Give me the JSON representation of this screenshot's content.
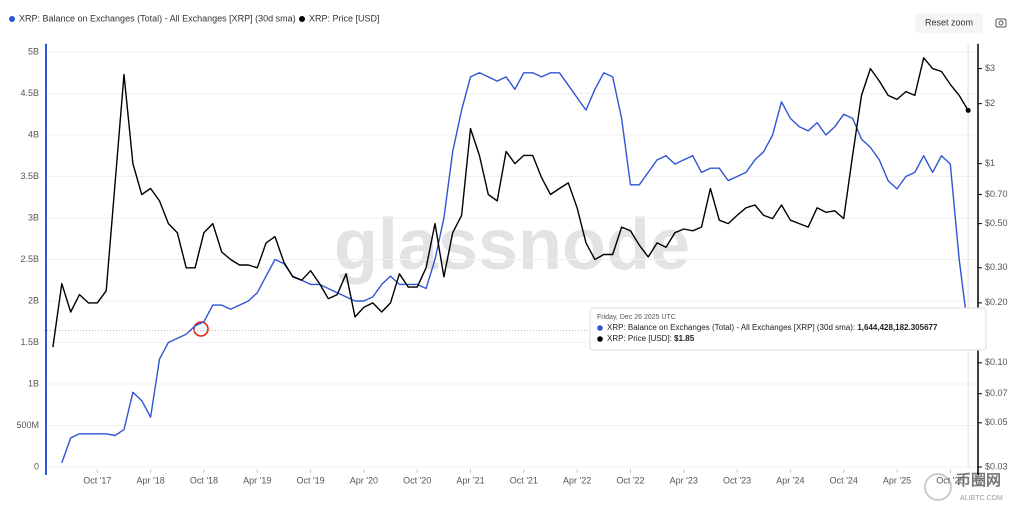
{
  "chart_data": {
    "type": "line",
    "legend": [
      "XRP: Balance on Exchanges (Total) - All Exchanges [XRP] (30d sma)",
      "XRP: Price [USD]"
    ],
    "reset_button": "Reset zoom",
    "watermark": "glassnode",
    "x": [
      "2017-05",
      "2017-06",
      "2017-07",
      "2017-08",
      "2017-09",
      "2017-10",
      "2017-11",
      "2017-12",
      "2018-01",
      "2018-02",
      "2018-03",
      "2018-04",
      "2018-05",
      "2018-06",
      "2018-07",
      "2018-08",
      "2018-09",
      "2018-10",
      "2018-11",
      "2018-12",
      "2019-01",
      "2019-02",
      "2019-03",
      "2019-04",
      "2019-05",
      "2019-06",
      "2019-07",
      "2019-08",
      "2019-09",
      "2019-10",
      "2019-11",
      "2019-12",
      "2020-01",
      "2020-02",
      "2020-03",
      "2020-04",
      "2020-05",
      "2020-06",
      "2020-07",
      "2020-08",
      "2020-09",
      "2020-10",
      "2020-11",
      "2020-12",
      "2021-01",
      "2021-02",
      "2021-03",
      "2021-04",
      "2021-05",
      "2021-06",
      "2021-07",
      "2021-08",
      "2021-09",
      "2021-10",
      "2021-11",
      "2021-12",
      "2022-01",
      "2022-02",
      "2022-03",
      "2022-04",
      "2022-05",
      "2022-06",
      "2022-07",
      "2022-08",
      "2022-09",
      "2022-10",
      "2022-11",
      "2022-12",
      "2023-01",
      "2023-02",
      "2023-03",
      "2023-04",
      "2023-05",
      "2023-06",
      "2023-07",
      "2023-08",
      "2023-09",
      "2023-10",
      "2023-11",
      "2023-12",
      "2024-01",
      "2024-02",
      "2024-03",
      "2024-04",
      "2024-05",
      "2024-06",
      "2024-07",
      "2024-08",
      "2024-09",
      "2024-10",
      "2024-11",
      "2024-12",
      "2025-01",
      "2025-02",
      "2025-03",
      "2025-04",
      "2025-05",
      "2025-06",
      "2025-07",
      "2025-08",
      "2025-09",
      "2025-10",
      "2025-11",
      "2025-12"
    ],
    "series": [
      {
        "name": "XRP: Balance on Exchanges (Total) - All Exchanges [XRP] (30d sma)",
        "color": "#2f55d4",
        "axis": "y",
        "values": [
          null,
          50000000,
          350000000,
          400000000,
          400000000,
          400000000,
          400000000,
          380000000,
          450000000,
          900000000,
          800000000,
          600000000,
          1300000000,
          1500000000,
          1550000000,
          1600000000,
          1700000000,
          1750000000,
          1950000000,
          1950000000,
          1900000000,
          1950000000,
          2000000000,
          2100000000,
          2300000000,
          2500000000,
          2450000000,
          2300000000,
          2250000000,
          2200000000,
          2200000000,
          2150000000,
          2100000000,
          2050000000,
          2000000000,
          2000000000,
          2050000000,
          2200000000,
          2300000000,
          2200000000,
          2200000000,
          2200000000,
          2150000000,
          2500000000,
          3000000000,
          3800000000,
          4300000000,
          4700000000,
          4750000000,
          4700000000,
          4650000000,
          4700000000,
          4550000000,
          4750000000,
          4750000000,
          4700000000,
          4750000000,
          4750000000,
          4600000000,
          4450000000,
          4300000000,
          4550000000,
          4750000000,
          4700000000,
          4200000000,
          3400000000,
          3400000000,
          3550000000,
          3700000000,
          3750000000,
          3650000000,
          3700000000,
          3750000000,
          3550000000,
          3600000000,
          3600000000,
          3450000000,
          3500000000,
          3550000000,
          3700000000,
          3800000000,
          4000000000,
          4400000000,
          4200000000,
          4100000000,
          4050000000,
          4150000000,
          4000000000,
          4100000000,
          4250000000,
          4200000000,
          3950000000,
          3850000000,
          3700000000,
          3450000000,
          3350000000,
          3500000000,
          3550000000,
          3750000000,
          3550000000,
          3750000000,
          3650000000,
          2500000000,
          1644428182.305677
        ]
      },
      {
        "name": "XRP: Price [USD]",
        "color": "#000000",
        "axis": "y2",
        "values": [
          0.12,
          0.25,
          0.18,
          0.22,
          0.2,
          0.2,
          0.23,
          0.8,
          2.8,
          1.0,
          0.7,
          0.75,
          0.65,
          0.5,
          0.45,
          0.3,
          0.3,
          0.45,
          0.5,
          0.36,
          0.33,
          0.31,
          0.31,
          0.3,
          0.4,
          0.43,
          0.32,
          0.27,
          0.26,
          0.29,
          0.25,
          0.21,
          0.22,
          0.28,
          0.17,
          0.19,
          0.2,
          0.18,
          0.2,
          0.28,
          0.24,
          0.24,
          0.3,
          0.5,
          0.27,
          0.45,
          0.55,
          1.5,
          1.1,
          0.7,
          0.65,
          1.15,
          1.0,
          1.1,
          1.1,
          0.85,
          0.7,
          0.75,
          0.8,
          0.6,
          0.4,
          0.33,
          0.35,
          0.35,
          0.48,
          0.46,
          0.39,
          0.34,
          0.4,
          0.38,
          0.45,
          0.47,
          0.46,
          0.48,
          0.75,
          0.52,
          0.5,
          0.55,
          0.6,
          0.62,
          0.55,
          0.53,
          0.62,
          0.52,
          0.5,
          0.48,
          0.6,
          0.57,
          0.58,
          0.53,
          1.1,
          2.2,
          3.0,
          2.6,
          2.2,
          2.1,
          2.3,
          2.2,
          3.4,
          3.0,
          2.9,
          2.5,
          2.2,
          1.85
        ]
      }
    ],
    "xlim": [
      "2017-04",
      "2026-01"
    ],
    "xticks": [
      {
        "value": "2017-10",
        "label": "Oct '17"
      },
      {
        "value": "2018-04",
        "label": "Apr '18"
      },
      {
        "value": "2018-10",
        "label": "Oct '18"
      },
      {
        "value": "2019-04",
        "label": "Apr '19"
      },
      {
        "value": "2019-10",
        "label": "Oct '19"
      },
      {
        "value": "2020-04",
        "label": "Apr '20"
      },
      {
        "value": "2020-10",
        "label": "Oct '20"
      },
      {
        "value": "2021-04",
        "label": "Apr '21"
      },
      {
        "value": "2021-10",
        "label": "Oct '21"
      },
      {
        "value": "2022-04",
        "label": "Apr '22"
      },
      {
        "value": "2022-10",
        "label": "Oct '22"
      },
      {
        "value": "2023-04",
        "label": "Apr '23"
      },
      {
        "value": "2023-10",
        "label": "Oct '23"
      },
      {
        "value": "2024-04",
        "label": "Apr '24"
      },
      {
        "value": "2024-10",
        "label": "Oct '24"
      },
      {
        "value": "2025-04",
        "label": "Apr '25"
      },
      {
        "value": "2025-10",
        "label": "Oct '25"
      }
    ],
    "ylim": [
      0,
      5100000000
    ],
    "yticks": [
      0,
      {
        "value": 500000000,
        "label": "500M"
      },
      {
        "value": 1000000000,
        "label": "1B"
      },
      {
        "value": 1500000000,
        "label": "1.5B"
      },
      {
        "value": 2000000000,
        "label": "2B"
      },
      {
        "value": 2500000000,
        "label": "2.5B"
      },
      {
        "value": 3000000000,
        "label": "3B"
      },
      {
        "value": 3500000000,
        "label": "3.5B"
      },
      {
        "value": 4000000000,
        "label": "4B"
      },
      {
        "value": 4500000000,
        "label": "4.5B"
      },
      {
        "value": 5000000000,
        "label": "5B"
      }
    ],
    "y2lim": [
      0.03,
      4
    ],
    "y2scale": "log",
    "y2ticks": [
      {
        "value": 0.03,
        "label": "$0.03"
      },
      {
        "value": 0.05,
        "label": "$0.05"
      },
      {
        "value": 0.07,
        "label": "$0.07"
      },
      {
        "value": 0.1,
        "label": "$0.10"
      },
      {
        "value": 0.2,
        "label": "$0.20"
      },
      {
        "value": 0.3,
        "label": "$0.30"
      },
      {
        "value": 0.5,
        "label": "$0.50"
      },
      {
        "value": 0.7,
        "label": "$0.70"
      },
      {
        "value": 1,
        "label": "$1"
      },
      {
        "value": 2,
        "label": "$2"
      },
      {
        "value": 3,
        "label": "$3"
      }
    ],
    "grid": true,
    "tooltip": {
      "date": "Friday, Dec 26 2025 UTC",
      "rows": [
        {
          "label": "XRP: Balance on Exchanges (Total) - All Exchanges [XRP] (30d sma): ",
          "value_label": "1,644,428,182.305677"
        },
        {
          "label": "XRP: Price [USD]: ",
          "value_label": "$1.85"
        }
      ]
    },
    "logo": {
      "name": "币圈网",
      "url": "ALIBTC.COM"
    }
  }
}
